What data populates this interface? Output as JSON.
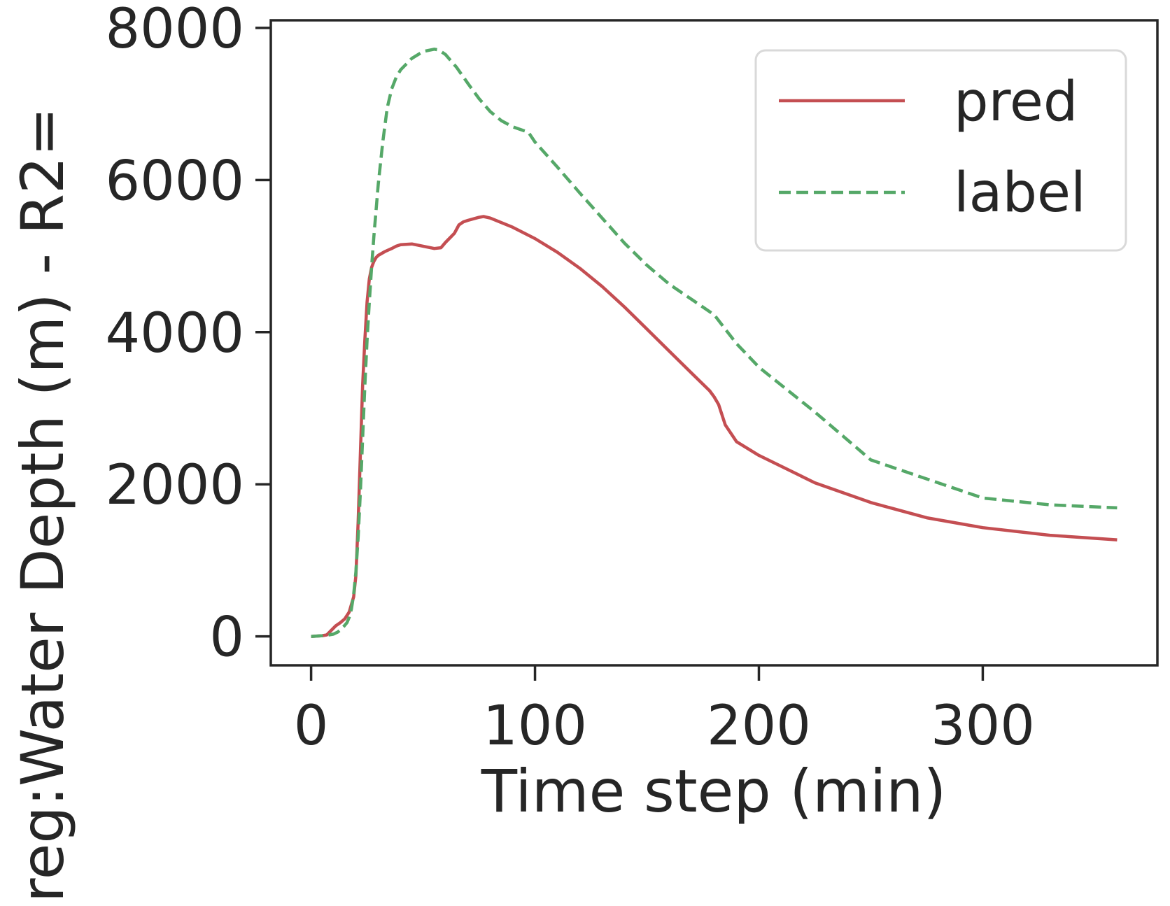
{
  "chart_data": {
    "type": "line",
    "xlabel": "Time step (min)",
    "ylabel": "reg:Water Depth (m) - R2=",
    "xlim": [
      -18,
      378
    ],
    "ylim": [
      -380,
      8100
    ],
    "xticks": [
      0,
      100,
      200,
      300
    ],
    "yticks": [
      0,
      2000,
      4000,
      6000,
      8000
    ],
    "xtick_labels": [
      "0",
      "100",
      "200",
      "300"
    ],
    "ytick_labels": [
      "0",
      "2000",
      "4000",
      "6000",
      "8000"
    ],
    "grid": false,
    "legend": {
      "location": "upper right"
    },
    "series": [
      {
        "name": "pred",
        "color": "#c44e52",
        "style": "solid",
        "x": [
          0,
          5,
          7,
          9,
          11,
          13,
          15,
          17,
          19,
          20,
          21,
          22,
          23,
          24,
          25,
          26,
          27,
          28,
          29,
          30,
          33,
          36,
          38,
          40,
          45,
          50,
          55,
          58,
          60,
          62,
          64,
          66,
          68,
          70,
          75,
          77,
          80,
          90,
          100,
          110,
          120,
          130,
          140,
          150,
          160,
          170,
          178,
          180,
          182,
          185,
          190,
          200,
          225,
          250,
          275,
          300,
          330,
          360
        ],
        "y": [
          0,
          10,
          20,
          80,
          140,
          180,
          230,
          320,
          520,
          800,
          1500,
          2400,
          3300,
          3900,
          4400,
          4700,
          4850,
          4930,
          4980,
          5010,
          5060,
          5100,
          5130,
          5150,
          5160,
          5130,
          5100,
          5110,
          5180,
          5240,
          5300,
          5410,
          5450,
          5470,
          5510,
          5520,
          5500,
          5380,
          5230,
          5050,
          4840,
          4600,
          4330,
          4040,
          3750,
          3460,
          3230,
          3150,
          3050,
          2780,
          2560,
          2380,
          2020,
          1760,
          1560,
          1430,
          1330,
          1270
        ]
      },
      {
        "name": "label",
        "color": "#55a868",
        "style": "dashed",
        "x": [
          0,
          5,
          8,
          10,
          12,
          14,
          16,
          17,
          18,
          19,
          20,
          21,
          22,
          23,
          24,
          25,
          26,
          27,
          28,
          29,
          30,
          32,
          34,
          36,
          38,
          40,
          45,
          50,
          55,
          57,
          60,
          65,
          70,
          75,
          80,
          85,
          90,
          95,
          97,
          100,
          110,
          120,
          130,
          140,
          150,
          160,
          170,
          180,
          190,
          200,
          225,
          250,
          275,
          300,
          330,
          360
        ],
        "y": [
          0,
          10,
          20,
          30,
          60,
          110,
          180,
          250,
          360,
          550,
          850,
          1300,
          1900,
          2600,
          3300,
          3900,
          4400,
          4850,
          5250,
          5600,
          5950,
          6500,
          6950,
          7200,
          7350,
          7450,
          7600,
          7690,
          7720,
          7710,
          7650,
          7480,
          7270,
          7070,
          6900,
          6780,
          6700,
          6650,
          6630,
          6500,
          6170,
          5830,
          5500,
          5170,
          4880,
          4630,
          4430,
          4230,
          3850,
          3540,
          2950,
          2320,
          2070,
          1820,
          1730,
          1690
        ]
      }
    ]
  }
}
